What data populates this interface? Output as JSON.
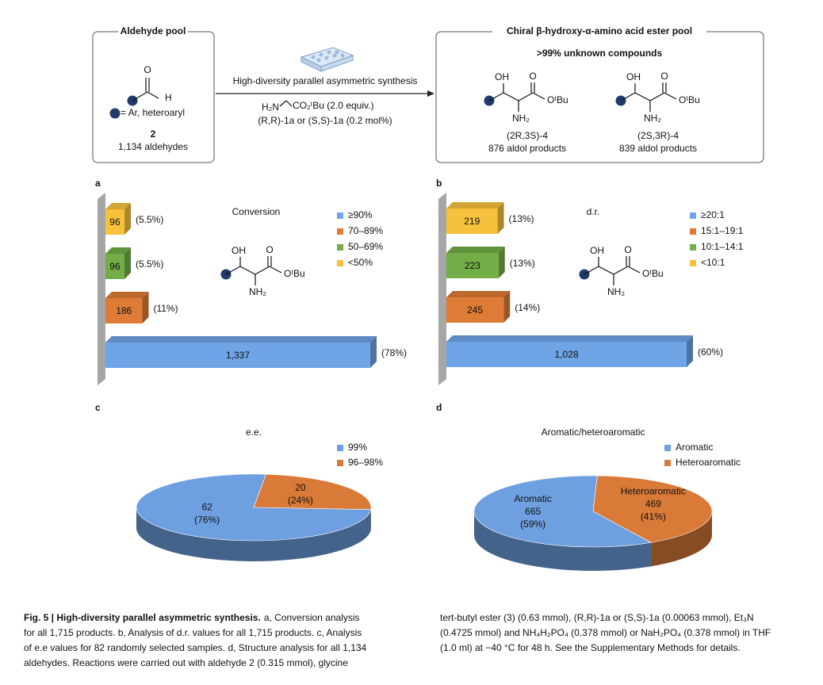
{
  "scheme": {
    "left_box": {
      "title": "Aldehyde pool",
      "r_label": "= Ar, heteroaryl",
      "compound": "2",
      "count": "1,134 aldehydes"
    },
    "arrow": {
      "above": "High-diversity parallel asymmetric synthesis",
      "reagent_amine": "H₂N",
      "reagent_ester": "CO₂ᵗBu (2.0 equiv.)",
      "catalyst": "(R,R)-1a or (S,S)-1a (0.2 mol%)"
    },
    "right_box": {
      "title": "Chiral β-hydroxy-α-amino acid ester pool",
      "highlight": ">99% unknown compounds",
      "products": [
        {
          "compound": "(2R,3S)-4",
          "count": "876 aldol products"
        },
        {
          "compound": "(2S,3R)-4",
          "count": "839 aldol products"
        }
      ]
    }
  },
  "atoms": {
    "oh": "OH",
    "o": "O",
    "ester": "OᵗBu",
    "nh2": "NH₂",
    "h": "H"
  },
  "panels": [
    "a",
    "b",
    "c",
    "d"
  ],
  "chart_data": [
    {
      "type": "bar",
      "orientation": "horizontal",
      "title": "Conversion",
      "categories": [
        "≥90%",
        "70–89%",
        "50–69%",
        "<50%"
      ],
      "values": [
        1337,
        186,
        96,
        96
      ],
      "value_labels": [
        "1,337",
        "186",
        "96",
        "96"
      ],
      "percents": [
        78,
        11,
        5.5,
        5.5
      ],
      "percent_labels": [
        "(78%)",
        "(11%)",
        "(5.5%)",
        "(5.5%)"
      ],
      "colors": [
        "#6fa4e6",
        "#de7b36",
        "#72ad47",
        "#f6c13c"
      ]
    },
    {
      "type": "bar",
      "orientation": "horizontal",
      "title": "d.r.",
      "categories": [
        "≥20:1",
        "15:1–19:1",
        "10:1–14:1",
        "<10:1"
      ],
      "values": [
        1028,
        245,
        223,
        219
      ],
      "value_labels": [
        "1,028",
        "245",
        "223",
        "219"
      ],
      "percents": [
        60,
        14,
        13,
        13
      ],
      "percent_labels": [
        "(60%)",
        "(14%)",
        "(13%)",
        "(13%)"
      ],
      "colors": [
        "#6fa4e6",
        "#de7b36",
        "#72ad47",
        "#f6c13c"
      ]
    },
    {
      "type": "pie",
      "title": "e.e.",
      "categories": [
        "99%",
        "96–98%"
      ],
      "values": [
        62,
        20
      ],
      "percents": [
        76,
        24
      ],
      "percent_labels": [
        "(76%)",
        "(24%)"
      ],
      "colors": [
        "#6e9fe0",
        "#d97a38"
      ],
      "category_in_slice": false
    },
    {
      "type": "pie",
      "title": "Aromatic/heteroaromatic",
      "categories": [
        "Aromatic",
        "Heteroaromatic"
      ],
      "values": [
        665,
        469
      ],
      "percents": [
        59,
        41
      ],
      "percent_labels": [
        "(59%)",
        "(41%)"
      ],
      "colors": [
        "#6e9fe0",
        "#d97a38"
      ],
      "category_in_slice": true
    }
  ],
  "caption": {
    "title": "Fig. 5 | High-diversity parallel asymmetric synthesis.",
    "left": [
      "a, Conversion analysis",
      "for all 1,715 products. b, Analysis of d.r. values for all 1,715 products. c, Analysis",
      "of e.e values for 82 randomly selected samples. d, Structure analysis for all 1,134",
      "aldehydes. Reactions were carried out with aldehyde 2 (0.315 mmol), glycine"
    ],
    "right": [
      "tert-butyl ester (3) (0.63 mmol), (R,R)-1a or (S,S)-1a (0.00063 mmol), Et₃N",
      "(0.4725 mmol) and NH₄H₂PO₄ (0.378 mmol) or NaH₂PO₄ (0.378 mmol) in THF",
      "(1.0 ml) at −40 °C for 48 h. See the Supplementary Methods for details."
    ]
  }
}
